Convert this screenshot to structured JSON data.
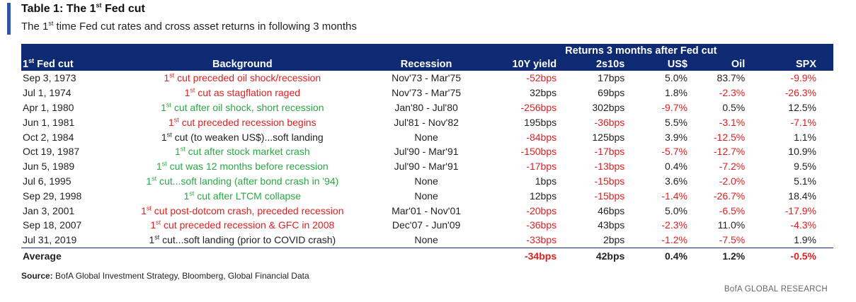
{
  "title": {
    "prefix": "Table 1: The 1",
    "sup": "st",
    "suffix": " Fed cut"
  },
  "subtitle": {
    "prefix": "The 1",
    "sup": "st",
    "suffix": " time Fed cut rates and cross asset returns in following 3 months"
  },
  "header": {
    "group_label": "Returns 3 months after Fed cut",
    "col0_prefix": "1",
    "col0_sup": "st",
    "col0_suffix": " Fed cut",
    "col1": "Background",
    "col2": "Recession",
    "col3": "10Y yield",
    "col4": "2s10s",
    "col5": "US$",
    "col6": "Oil",
    "col7": "SPX"
  },
  "colors": {
    "red": "#e02020",
    "green": "#2aa845",
    "header_bg": "#0e2a72"
  },
  "rows": [
    {
      "date": "Sep 3, 1973",
      "bg_sup": "st",
      "bg_text": " cut preceded oil shock/recession",
      "bg_color": "red",
      "recession": "Nov'73 - Mar'75",
      "y10": "-52bps",
      "y10_c": "red",
      "s2s10": "17bps",
      "s2s10_c": "black",
      "usd": "5.0%",
      "usd_c": "black",
      "oil": "83.7%",
      "oil_c": "black",
      "spx": "-9.9%",
      "spx_c": "red"
    },
    {
      "date": "Jul 1, 1974",
      "bg_sup": "st",
      "bg_text": " cut as stagflation raged",
      "bg_color": "red",
      "recession": "Nov'73 - Mar'75",
      "y10": "32bps",
      "y10_c": "black",
      "s2s10": "69bps",
      "s2s10_c": "black",
      "usd": "1.8%",
      "usd_c": "black",
      "oil": "-2.3%",
      "oil_c": "red",
      "spx": "-26.3%",
      "spx_c": "red"
    },
    {
      "date": "Apr 1, 1980",
      "bg_sup": "st",
      "bg_text": " cut after oil shock, short recession",
      "bg_color": "green",
      "recession": "Jan'80 - Jul'80",
      "y10": "-256bps",
      "y10_c": "red",
      "s2s10": "302bps",
      "s2s10_c": "black",
      "usd": "-9.7%",
      "usd_c": "red",
      "oil": "0.5%",
      "oil_c": "black",
      "spx": "12.5%",
      "spx_c": "black"
    },
    {
      "date": "Jun 1, 1981",
      "bg_sup": "st",
      "bg_text": " cut preceded recession begins",
      "bg_color": "red",
      "recession": "Jul'81 - Nov'82",
      "y10": "195bps",
      "y10_c": "black",
      "s2s10": "-36bps",
      "s2s10_c": "red",
      "usd": "5.5%",
      "usd_c": "black",
      "oil": "-3.1%",
      "oil_c": "red",
      "spx": "-7.1%",
      "spx_c": "red"
    },
    {
      "date": "Oct 2, 1984",
      "bg_sup": "st",
      "bg_text": " cut (to weaken US$)...soft landing",
      "bg_color": "black",
      "recession": "None",
      "y10": "-84bps",
      "y10_c": "red",
      "s2s10": "125bps",
      "s2s10_c": "black",
      "usd": "3.9%",
      "usd_c": "black",
      "oil": "-12.5%",
      "oil_c": "red",
      "spx": "1.1%",
      "spx_c": "black"
    },
    {
      "date": "Oct 19, 1987",
      "bg_sup": "st",
      "bg_text": " cut after stock market crash",
      "bg_color": "green",
      "recession": "Jul'90 - Mar'91",
      "y10": "-150bps",
      "y10_c": "red",
      "s2s10": "-17bps",
      "s2s10_c": "red",
      "usd": "-5.7%",
      "usd_c": "red",
      "oil": "-12.7%",
      "oil_c": "red",
      "spx": "10.9%",
      "spx_c": "black"
    },
    {
      "date": "Jun 5, 1989",
      "bg_sup": "st",
      "bg_text": " cut was 12 months before recession",
      "bg_color": "green",
      "recession": "Jul'90 - Mar'91",
      "y10": "-17bps",
      "y10_c": "red",
      "s2s10": "-13bps",
      "s2s10_c": "red",
      "usd": "0.4%",
      "usd_c": "black",
      "oil": "-7.2%",
      "oil_c": "red",
      "spx": "9.5%",
      "spx_c": "black"
    },
    {
      "date": "Jul 6, 1995",
      "bg_sup": "st",
      "bg_text": " cut...soft landing (after bond crash in '94)",
      "bg_color": "green",
      "recession": "None",
      "y10": "1bps",
      "y10_c": "black",
      "s2s10": "-15bps",
      "s2s10_c": "red",
      "usd": "3.6%",
      "usd_c": "black",
      "oil": "-2.0%",
      "oil_c": "red",
      "spx": "5.1%",
      "spx_c": "black"
    },
    {
      "date": "Sep 29, 1998",
      "bg_sup": "st",
      "bg_text": " cut after LTCM collapse",
      "bg_color": "green",
      "recession": "None",
      "y10": "12bps",
      "y10_c": "black",
      "s2s10": "-15bps",
      "s2s10_c": "red",
      "usd": "-1.4%",
      "usd_c": "red",
      "oil": "-26.7%",
      "oil_c": "red",
      "spx": "18.4%",
      "spx_c": "black"
    },
    {
      "date": "Jan 3, 2001",
      "bg_sup": "st",
      "bg_text": " cut post-dotcom crash, preceded recession",
      "bg_color": "red",
      "recession": "Mar'01 - Nov'01",
      "y10": "-20bps",
      "y10_c": "red",
      "s2s10": "46bps",
      "s2s10_c": "black",
      "usd": "5.0%",
      "usd_c": "black",
      "oil": "-6.5%",
      "oil_c": "red",
      "spx": "-17.9%",
      "spx_c": "red"
    },
    {
      "date": "Sep 18, 2007",
      "bg_sup": "st",
      "bg_text": " cut preceded recession & GFC in 2008",
      "bg_color": "red",
      "recession": "Dec'07 - Jun'09",
      "y10": "-36bps",
      "y10_c": "red",
      "s2s10": "43bps",
      "s2s10_c": "black",
      "usd": "-2.3%",
      "usd_c": "red",
      "oil": "11.0%",
      "oil_c": "black",
      "spx": "-4.3%",
      "spx_c": "red"
    },
    {
      "date": "Jul 31, 2019",
      "bg_sup": "st",
      "bg_text": " cut...soft landing (prior to COVID crash)",
      "bg_color": "black",
      "recession": "None",
      "y10": "-33bps",
      "y10_c": "red",
      "s2s10": "2bps",
      "s2s10_c": "black",
      "usd": "-1.2%",
      "usd_c": "red",
      "oil": "-7.5%",
      "oil_c": "red",
      "spx": "1.9%",
      "spx_c": "black"
    }
  ],
  "average": {
    "label": "Average",
    "y10": "-34bps",
    "y10_c": "red",
    "s2s10": "42bps",
    "s2s10_c": "black",
    "usd": "0.4%",
    "usd_c": "black",
    "oil": "1.2%",
    "oil_c": "black",
    "spx": "-0.5%",
    "spx_c": "red"
  },
  "source": {
    "label": "Source:",
    "text": " BofA Global Investment Strategy, Bloomberg, Global Financial Data"
  },
  "brand": "BofA GLOBAL RESEARCH"
}
